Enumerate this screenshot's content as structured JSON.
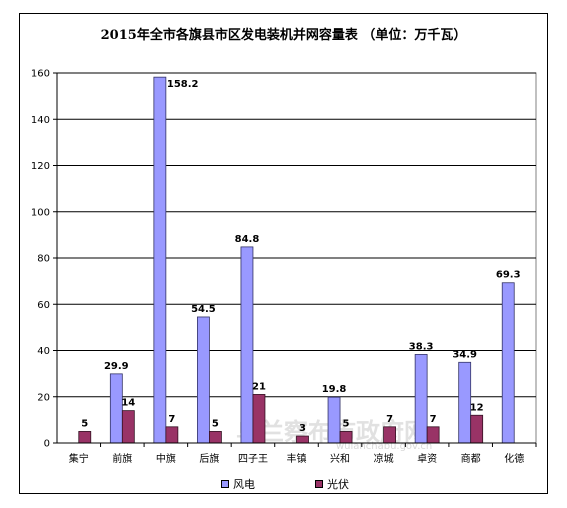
{
  "chart_data": {
    "type": "bar",
    "title": "2015年全市各旗县市区发电装机并网容量表 （单位：万千瓦）",
    "categories": [
      "集宁",
      "前旗",
      "中旗",
      "后旗",
      "四子王",
      "丰镇",
      "兴和",
      "凉城",
      "卓资",
      "商都",
      "化德"
    ],
    "series": [
      {
        "name": "风电",
        "values": [
          null,
          29.9,
          158.2,
          54.5,
          84.8,
          null,
          19.8,
          null,
          38.3,
          34.9,
          69.3
        ],
        "labels": [
          "",
          "29.9",
          "158.2",
          "54.5",
          "84.8",
          "",
          "19.8",
          "",
          "38.3",
          "34.9",
          "69.3"
        ]
      },
      {
        "name": "光伏",
        "values": [
          5,
          14,
          7,
          5,
          21,
          3,
          5,
          7,
          7,
          12,
          null
        ],
        "labels": [
          "5",
          "14",
          "7",
          "5",
          "21",
          "3",
          "5",
          "7",
          "7",
          "12",
          ""
        ]
      }
    ],
    "ylim": [
      0,
      160
    ],
    "yticks": [
      0,
      20,
      40,
      60,
      80,
      100,
      120,
      140,
      160
    ],
    "grid": true,
    "legend": "bottom",
    "colors": {
      "风电": "#9999ff",
      "光伏": "#993366"
    }
  },
  "watermark": "乌兰察布市政府网 wulanchabu.gov.cn"
}
